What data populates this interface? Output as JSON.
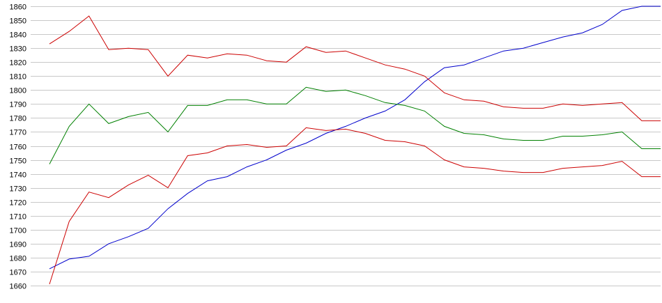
{
  "chart_data": {
    "type": "line",
    "title": "",
    "xlabel": "",
    "ylabel": "",
    "ylim": [
      1660,
      1860
    ],
    "yticks": [
      1660,
      1670,
      1680,
      1690,
      1700,
      1710,
      1720,
      1730,
      1740,
      1750,
      1760,
      1770,
      1780,
      1790,
      1800,
      1810,
      1820,
      1830,
      1840,
      1850,
      1860
    ],
    "grid": true,
    "legend": "none",
    "x": [
      1,
      2,
      3,
      4,
      5,
      6,
      7,
      8,
      9,
      10,
      11,
      12,
      13,
      14,
      15,
      16,
      17,
      18,
      19,
      20,
      21,
      22,
      23,
      24,
      25,
      26,
      27,
      28,
      29,
      30,
      31,
      32
    ],
    "series": [
      {
        "color": "#0000cc",
        "values": [
          1672,
          1679,
          1681,
          1690,
          1695,
          1701,
          1715,
          1726,
          1735,
          1738,
          1745,
          1750,
          1757,
          1762,
          1769,
          1774,
          1780,
          1785,
          1793,
          1806,
          1816,
          1818,
          1823,
          1828,
          1830,
          1834,
          1838,
          1841,
          1847,
          1857,
          1860,
          1860
        ]
      },
      {
        "color": "#cc0000",
        "values": [
          1833,
          1842,
          1853,
          1829,
          1830,
          1829,
          1810,
          1825,
          1823,
          1826,
          1825,
          1821,
          1820,
          1831,
          1827,
          1828,
          1823,
          1818,
          1815,
          1810,
          1798,
          1793,
          1792,
          1788,
          1787,
          1787,
          1790,
          1789,
          1790,
          1791,
          1778,
          1778
        ]
      },
      {
        "color": "#008000",
        "values": [
          1747,
          1774,
          1790,
          1776,
          1781,
          1784,
          1770,
          1789,
          1789,
          1793,
          1793,
          1790,
          1790,
          1802,
          1799,
          1800,
          1796,
          1791,
          1789,
          1785,
          1774,
          1769,
          1768,
          1765,
          1764,
          1764,
          1767,
          1767,
          1768,
          1770,
          1758,
          1758
        ]
      },
      {
        "color": "#cc0000",
        "values": [
          1661,
          1706,
          1727,
          1723,
          1732,
          1739,
          1730,
          1753,
          1755,
          1760,
          1761,
          1759,
          1760,
          1773,
          1771,
          1772,
          1769,
          1764,
          1763,
          1760,
          1750,
          1745,
          1744,
          1742,
          1741,
          1741,
          1744,
          1745,
          1746,
          1749,
          1738,
          1738
        ]
      }
    ]
  }
}
